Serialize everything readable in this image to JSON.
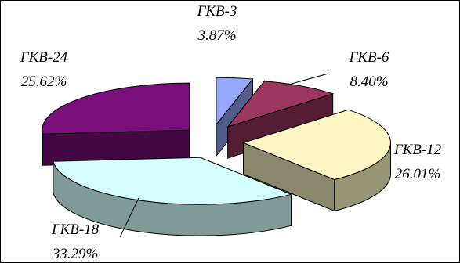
{
  "chart_data": {
    "type": "pie",
    "style": "3d-exploded",
    "title": "",
    "categories": [
      "ГКВ-3",
      "ГКВ-6",
      "ГКВ-12",
      "ГКВ-18",
      "ГКВ-24"
    ],
    "values": [
      3.87,
      8.4,
      26.01,
      33.29,
      25.62
    ],
    "value_labels": [
      "3.87%",
      "8.40%",
      "26.01%",
      "33.29%",
      "25.62%"
    ],
    "colors": [
      "#99a8ff",
      "#9c3560",
      "#fdf6c4",
      "#d5ffff",
      "#7a0f7c"
    ],
    "legend": "none"
  }
}
